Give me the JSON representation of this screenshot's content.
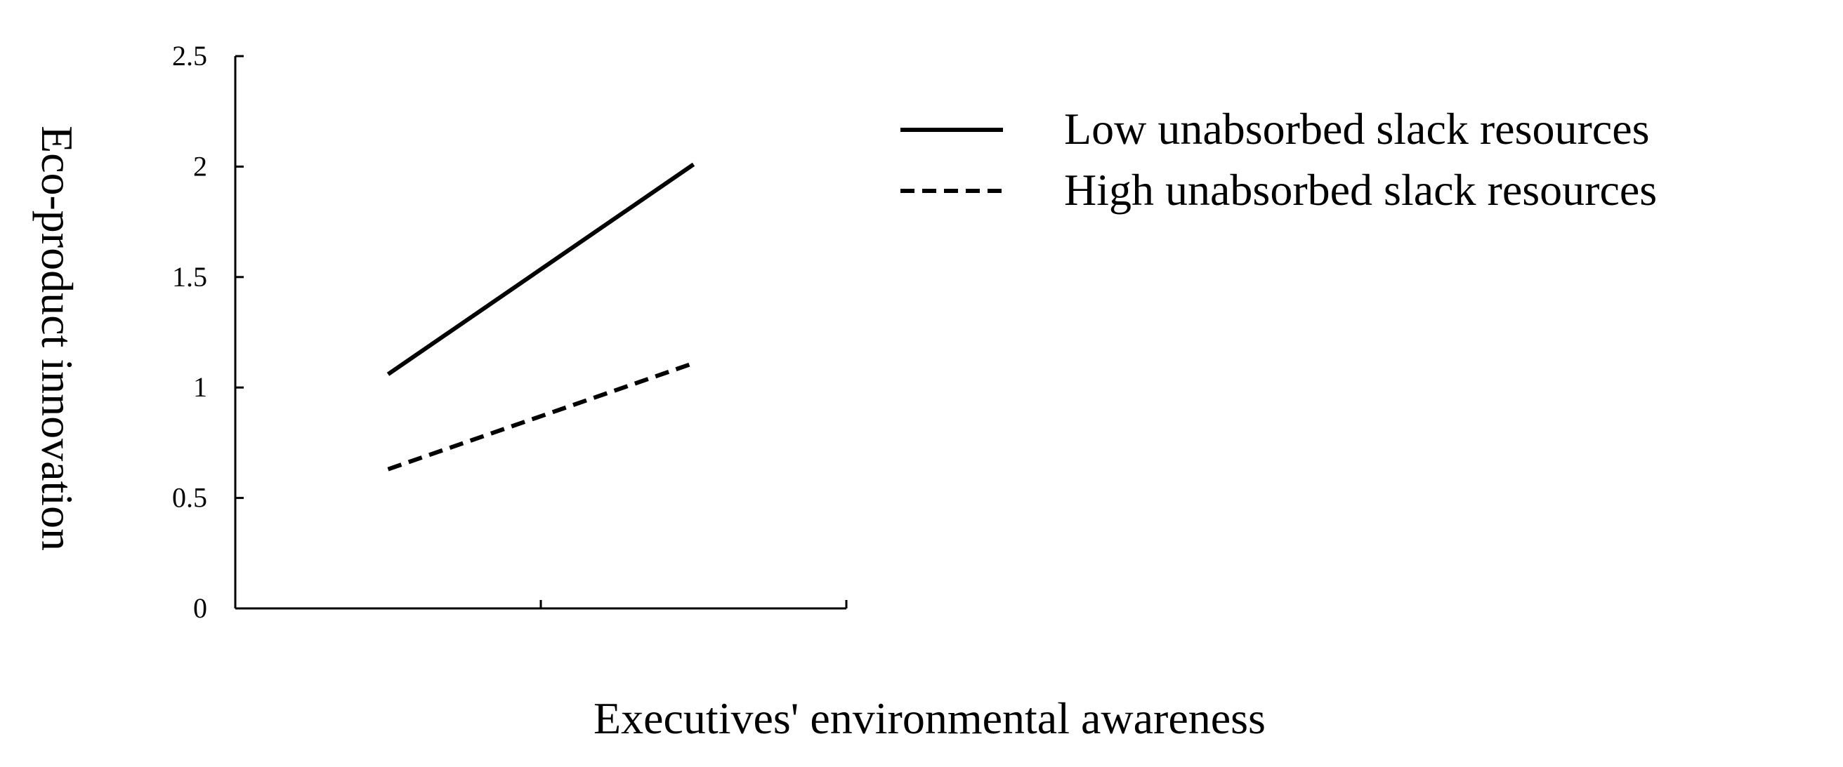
{
  "chart_data": {
    "type": "line",
    "title": "",
    "xlabel": "Executives' environmental awareness",
    "ylabel": "Eco-product innovation",
    "ylim": [
      0,
      2.5
    ],
    "yticks": [
      "0",
      "0.5",
      "1",
      "1.5",
      "2",
      "2.5"
    ],
    "xlim": [
      0,
      2
    ],
    "x_tick_labels": [],
    "grid": false,
    "legend_position": "right",
    "series": [
      {
        "name": "Low unabsorbed slack resources",
        "line_style": "solid",
        "color": "#000000",
        "points": [
          {
            "x": 0.5,
            "y": 1.06
          },
          {
            "x": 1.5,
            "y": 2.01
          }
        ]
      },
      {
        "name": "High unabsorbed slack resources",
        "line_style": "dashed",
        "color": "#000000",
        "points": [
          {
            "x": 0.5,
            "y": 0.63
          },
          {
            "x": 1.5,
            "y": 1.11
          }
        ]
      }
    ]
  }
}
